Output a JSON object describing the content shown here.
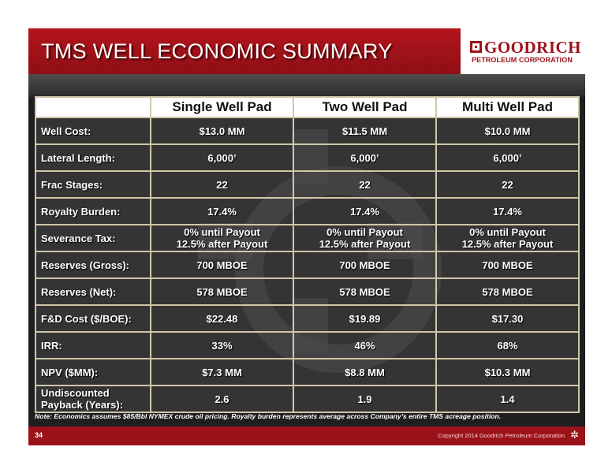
{
  "header": {
    "title": "TMS WELL ECONOMIC SUMMARY",
    "logo_name": "GOODRICH",
    "logo_sub": "PETROLEUM CORPORATION"
  },
  "table": {
    "columns": [
      "Single Well Pad",
      "Two Well Pad",
      "Multi Well Pad"
    ],
    "rows": [
      {
        "label": "Well Cost:",
        "values": [
          "$13.0 MM",
          "$11.5 MM",
          "$10.0 MM"
        ]
      },
      {
        "label": "Lateral Length:",
        "values": [
          "6,000’",
          "6,000’",
          "6,000’"
        ]
      },
      {
        "label": "Frac Stages:",
        "values": [
          "22",
          "22",
          "22"
        ]
      },
      {
        "label": "Royalty Burden:",
        "values": [
          "17.4%",
          "17.4%",
          "17.4%"
        ]
      },
      {
        "label": "Severance Tax:",
        "values": [
          [
            "0% until Payout",
            "12.5% after Payout"
          ],
          [
            "0% until Payout",
            "12.5% after Payout"
          ],
          [
            "0% until Payout",
            "12.5% after Payout"
          ]
        ]
      },
      {
        "label": "Reserves (Gross):",
        "values": [
          "700 MBOE",
          "700 MBOE",
          "700 MBOE"
        ]
      },
      {
        "label": "Reserves (Net):",
        "values": [
          "578 MBOE",
          "578 MBOE",
          "578 MBOE"
        ]
      },
      {
        "label": "F&D Cost ($/BOE):",
        "values": [
          "$22.48",
          "$19.89",
          "$17.30"
        ]
      },
      {
        "label": "IRR:",
        "values": [
          "33%",
          "46%",
          "68%"
        ]
      },
      {
        "label": "NPV ($MM):",
        "values": [
          "$7.3 MM",
          "$8.8 MM",
          "$10.3 MM"
        ]
      },
      {
        "label": [
          "Undiscounted",
          "Payback (Years):"
        ],
        "values": [
          "2.6",
          "1.9",
          "1.4"
        ]
      }
    ]
  },
  "note": "Note:  Economics assumes $85/Bbl NYMEX crude oil pricing.  Royalty burden represents average across Company’s entire TMS acreage position.",
  "footer": {
    "page_number": "34",
    "copyright": "Copyright 2014 Goodrich Petroleum Corporation"
  },
  "colors": {
    "header_red": "#b4141c",
    "footer_red": "#9c1219",
    "table_border": "#cfc7a6",
    "background": "#1f1f1f"
  }
}
